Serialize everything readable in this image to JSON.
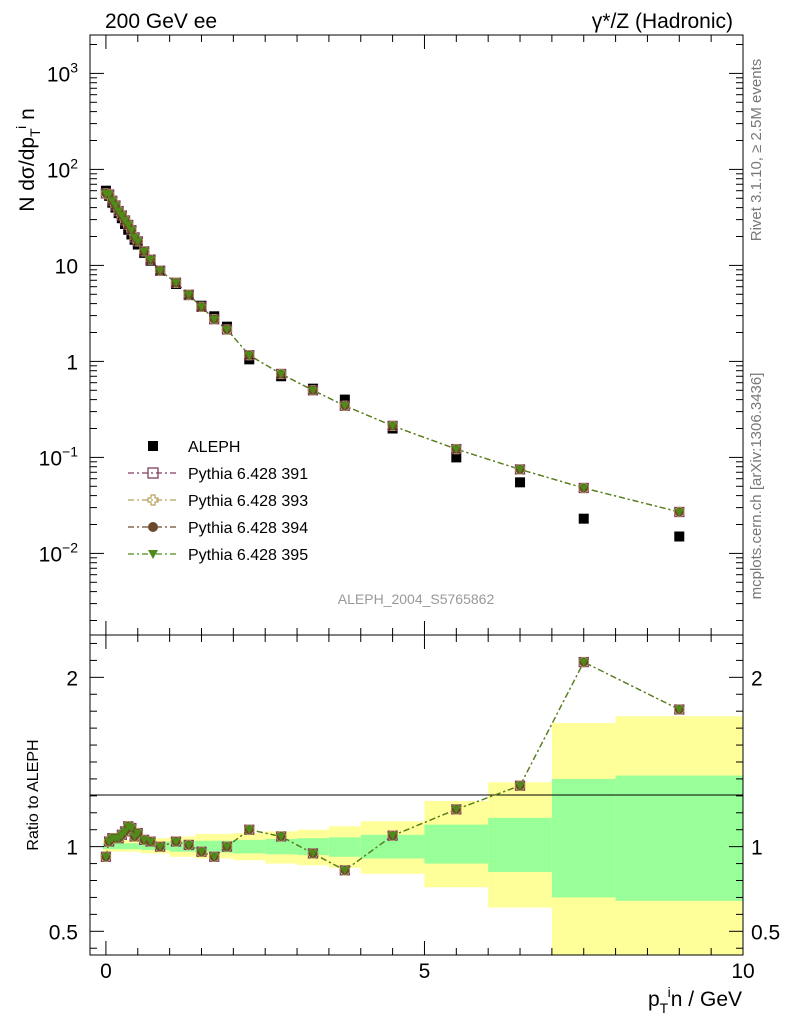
{
  "header": {
    "left_label": "200 GeV ee",
    "right_label": "γ*/Z (Hadronic)"
  },
  "side_text": {
    "rivet": "Rivet 3.1.10, ≥ 2.5M events",
    "mcplots": "mcplots.cern.ch [arXiv:1306.3436]"
  },
  "analysis_id": "ALEPH_2004_S5765862",
  "axes": {
    "ylabel_top": "N dσ/dp_T^i n",
    "ylabel_bottom": "Ratio to ALEPH",
    "xlabel": "p_T^i n / GeV",
    "xlim": [
      -0.25,
      10.0
    ],
    "ylim_top_log10": [
      -2.85,
      3.4
    ],
    "ylim_bottom": [
      0.36,
      2.25
    ],
    "x_ticks": [
      {
        "v": 0,
        "label": "0"
      },
      {
        "v": 5,
        "label": "5"
      },
      {
        "v": 10,
        "label": "10"
      }
    ],
    "y_ticks_top": [
      {
        "v": 3,
        "base": "10",
        "exp": "3"
      },
      {
        "v": 2,
        "base": "10",
        "exp": "2"
      },
      {
        "v": 1,
        "base": "10",
        "exp": ""
      },
      {
        "v": 0,
        "base": "1",
        "exp": ""
      },
      {
        "v": -1,
        "base": "10",
        "exp": "−1"
      },
      {
        "v": -2,
        "base": "10",
        "exp": "−2"
      }
    ],
    "y_ticks_bottom": [
      {
        "v": 0.5,
        "label": "0.5"
      },
      {
        "v": 1,
        "label": "1"
      },
      {
        "v": 2,
        "label": "2"
      }
    ]
  },
  "legend": [
    {
      "label": "ALEPH",
      "marker": "square-filled",
      "color": "#000000"
    },
    {
      "label": "Pythia 6.428 391",
      "marker": "square-open",
      "color": "#7f3f5f"
    },
    {
      "label": "Pythia 6.428 393",
      "marker": "cross-open",
      "color": "#b8a05c"
    },
    {
      "label": "Pythia 6.428 394",
      "marker": "circle-filled",
      "color": "#6b4a2a"
    },
    {
      "label": "Pythia 6.428 395",
      "marker": "triangle-down-filled",
      "color": "#4f8a1a"
    }
  ],
  "chart_data": {
    "type": "scatter",
    "x": [
      0.0,
      0.05,
      0.1,
      0.15,
      0.2,
      0.25,
      0.3,
      0.35,
      0.4,
      0.45,
      0.5,
      0.6,
      0.7,
      0.85,
      1.1,
      1.3,
      1.5,
      1.7,
      1.9,
      2.25,
      2.75,
      3.25,
      3.75,
      4.5,
      5.5,
      6.5,
      7.5,
      9.0
    ],
    "series": [
      {
        "name": "ALEPH",
        "values": [
          60,
          53,
          45,
          40,
          35,
          31,
          27,
          23.5,
          21,
          18.5,
          16.5,
          13.5,
          11.2,
          8.8,
          6.4,
          4.9,
          3.8,
          2.95,
          2.3,
          1.05,
          0.7,
          0.52,
          0.4,
          0.2,
          0.1,
          0.055,
          0.023,
          0.015
        ]
      },
      {
        "name": "Pythia 6.428 391",
        "values": [
          56.2,
          54.8,
          47.1,
          42.1,
          36.8,
          33.1,
          29.4,
          26.4,
          23.3,
          19.6,
          17.8,
          14.0,
          11.5,
          8.8,
          6.6,
          4.95,
          3.7,
          2.75,
          2.15,
          1.16,
          0.74,
          0.5,
          0.345,
          0.213,
          0.122,
          0.075,
          0.048,
          0.027
        ]
      },
      {
        "name": "Pythia 6.428 393",
        "values": [
          56.2,
          54.8,
          47.1,
          42.1,
          36.8,
          33.1,
          29.4,
          26.4,
          23.3,
          19.6,
          17.8,
          14.0,
          11.5,
          8.8,
          6.6,
          4.95,
          3.7,
          2.75,
          2.15,
          1.16,
          0.74,
          0.5,
          0.345,
          0.213,
          0.122,
          0.075,
          0.048,
          0.027
        ]
      },
      {
        "name": "Pythia 6.428 394",
        "values": [
          56.2,
          54.8,
          47.1,
          42.1,
          36.8,
          33.1,
          29.4,
          26.4,
          23.3,
          19.6,
          17.8,
          14.0,
          11.5,
          8.8,
          6.6,
          4.95,
          3.7,
          2.75,
          2.15,
          1.16,
          0.74,
          0.5,
          0.345,
          0.213,
          0.122,
          0.075,
          0.048,
          0.027
        ]
      },
      {
        "name": "Pythia 6.428 395",
        "values": [
          56.2,
          54.8,
          47.1,
          42.1,
          36.8,
          33.1,
          29.4,
          26.4,
          23.3,
          19.6,
          17.8,
          14.0,
          11.5,
          8.8,
          6.6,
          4.95,
          3.7,
          2.75,
          2.15,
          1.16,
          0.74,
          0.5,
          0.345,
          0.213,
          0.122,
          0.075,
          0.048,
          0.027
        ]
      }
    ],
    "ratio": [
      0.94,
      1.03,
      1.05,
      1.05,
      1.05,
      1.07,
      1.09,
      1.12,
      1.11,
      1.06,
      1.08,
      1.04,
      1.03,
      1.0,
      1.03,
      1.01,
      0.97,
      0.94,
      1.0,
      1.1,
      1.06,
      0.96,
      0.86,
      1.065,
      1.22,
      1.36,
      2.09,
      1.81
    ],
    "bands": [
      {
        "x0": -0.05,
        "x1": 0.55,
        "inner": [
          0.985,
          1.02
        ],
        "outer": [
          0.97,
          1.04
        ]
      },
      {
        "x0": 0.55,
        "x1": 1.0,
        "inner": [
          0.98,
          1.03
        ],
        "outer": [
          0.96,
          1.05
        ]
      },
      {
        "x0": 1.0,
        "x1": 1.4,
        "inner": [
          0.97,
          1.03
        ],
        "outer": [
          0.94,
          1.06
        ]
      },
      {
        "x0": 1.4,
        "x1": 2.0,
        "inner": [
          0.965,
          1.035
        ],
        "outer": [
          0.93,
          1.075
        ]
      },
      {
        "x0": 2.0,
        "x1": 2.5,
        "inner": [
          0.96,
          1.04
        ],
        "outer": [
          0.92,
          1.08
        ]
      },
      {
        "x0": 2.5,
        "x1": 3.0,
        "inner": [
          0.955,
          1.045
        ],
        "outer": [
          0.9,
          1.09
        ]
      },
      {
        "x0": 3.0,
        "x1": 3.5,
        "inner": [
          0.95,
          1.05
        ],
        "outer": [
          0.89,
          1.1
        ]
      },
      {
        "x0": 3.5,
        "x1": 4.0,
        "inner": [
          0.94,
          1.055
        ],
        "outer": [
          0.875,
          1.12
        ]
      },
      {
        "x0": 4.0,
        "x1": 5.0,
        "inner": [
          0.93,
          1.07
        ],
        "outer": [
          0.84,
          1.15
        ]
      },
      {
        "x0": 5.0,
        "x1": 6.0,
        "inner": [
          0.9,
          1.13
        ],
        "outer": [
          0.76,
          1.27
        ]
      },
      {
        "x0": 6.0,
        "x1": 7.0,
        "inner": [
          0.85,
          1.17
        ],
        "outer": [
          0.64,
          1.38
        ]
      },
      {
        "x0": 7.0,
        "x1": 8.0,
        "inner": [
          0.7,
          1.4
        ],
        "outer": [
          0.36,
          1.73
        ]
      },
      {
        "x0": 8.0,
        "x1": 10.0,
        "inner": [
          0.68,
          1.42
        ],
        "outer": [
          0.36,
          1.77
        ]
      }
    ],
    "band_colors": {
      "inner": "#99ff99",
      "outer": "#ffff99"
    },
    "title": "200 GeV ee",
    "xlabel": "p_T^i n / GeV",
    "ylabel": "N dσ/dp_T^i n",
    "ylabel_ratio": "Ratio to ALEPH",
    "y_scale": "log",
    "legend_position": "lower-left",
    "grid": false
  }
}
